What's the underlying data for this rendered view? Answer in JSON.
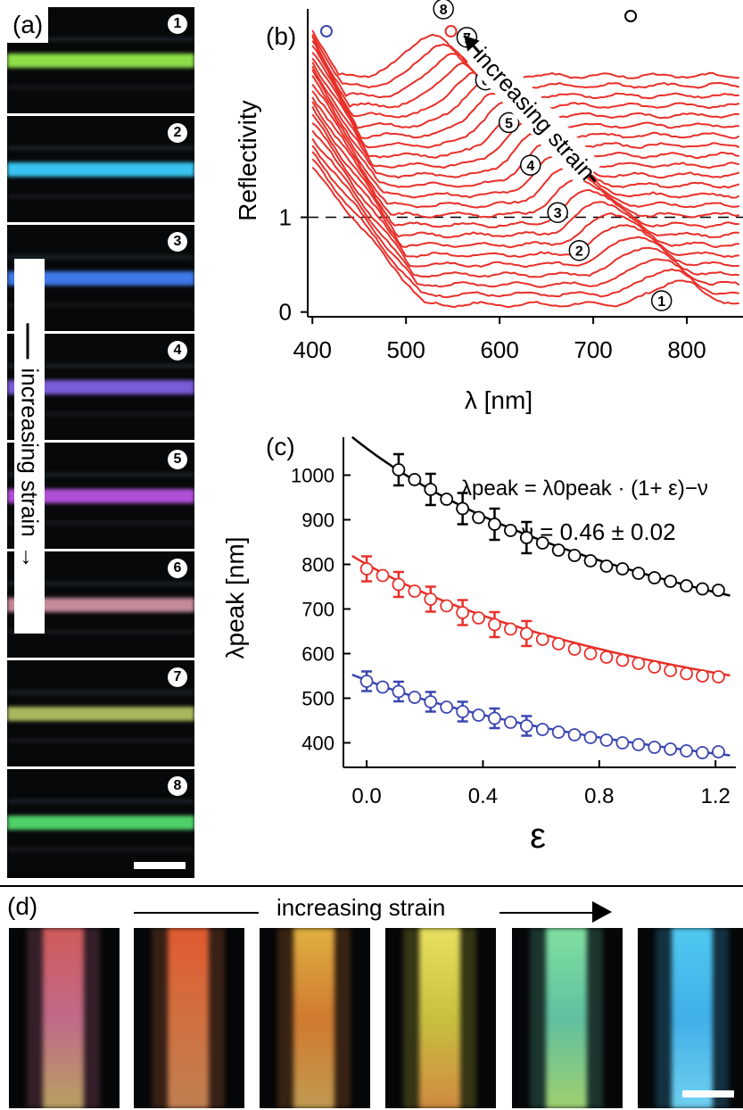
{
  "panel_a": {
    "label": "(a)",
    "strain_text": "increasing strain",
    "strips": [
      {
        "num": "1",
        "color": "#8ee04a"
      },
      {
        "num": "2",
        "color": "#38c4f2"
      },
      {
        "num": "3",
        "color": "#3f78e8"
      },
      {
        "num": "4",
        "color": "#7a5cd8"
      },
      {
        "num": "5",
        "color": "#b050d8"
      },
      {
        "num": "6",
        "color": "#c48a9a"
      },
      {
        "num": "7",
        "color": "#a9b85e"
      },
      {
        "num": "8",
        "color": "#4fd06a"
      }
    ]
  },
  "panel_d": {
    "label": "(d)",
    "strain_text": "increasing strain",
    "images": [
      {
        "colors": [
          "#d05a5a",
          "#c06a8a",
          "#b8a060"
        ]
      },
      {
        "colors": [
          "#e05a30",
          "#d07040",
          "#c08050"
        ]
      },
      {
        "colors": [
          "#e0b040",
          "#d07a30",
          "#c09a50"
        ]
      },
      {
        "colors": [
          "#e8e060",
          "#c8c040",
          "#d08a40"
        ]
      },
      {
        "colors": [
          "#80e0a0",
          "#60c0a0",
          "#a0d070"
        ]
      },
      {
        "colors": [
          "#50c8f0",
          "#40b0e8",
          "#70d0f0"
        ]
      }
    ]
  },
  "chart_data": [
    {
      "panel": "(b)",
      "type": "line",
      "xlabel": "λ [nm]",
      "ylabel": "Reflectivity",
      "xlim": [
        395,
        860
      ],
      "ylim": [
        -0.05,
        3.2
      ],
      "xticks": [
        "400",
        "500",
        "600",
        "700",
        "800"
      ],
      "yticks": [
        "0",
        "1"
      ],
      "reference_line_y": 1,
      "series_color": "#e8302a",
      "n_curves": 24,
      "annotation": "increasing strain",
      "curve_labels": [
        {
          "num": "1",
          "x": 773
        },
        {
          "num": "2",
          "x": 685
        },
        {
          "num": "3",
          "x": 662
        },
        {
          "num": "4",
          "x": 633
        },
        {
          "num": "5",
          "x": 610
        },
        {
          "num": "6",
          "x": 585
        },
        {
          "num": "7",
          "x": 565
        },
        {
          "num": "8",
          "x": 540
        }
      ],
      "peak_markers": [
        {
          "x": 415,
          "color": "#3b46b0"
        },
        {
          "x": 548,
          "color": "#e8302a"
        },
        {
          "x": 740,
          "color": "#000000"
        }
      ]
    },
    {
      "panel": "(c)",
      "type": "scatter",
      "xlabel": "ε",
      "ylabel": "λpeak [nm]",
      "xlim": [
        -0.08,
        1.27
      ],
      "ylim": [
        345,
        1085
      ],
      "xticks": [
        "0.0",
        "0.4",
        "0.8",
        "1.2"
      ],
      "yticks": [
        "400",
        "500",
        "600",
        "700",
        "800",
        "900",
        "1000"
      ],
      "formula": "λpeak = λ0peak · (1+ ε)−ν",
      "nu_text": "ν = 0.46 ± 0.02",
      "series": [
        {
          "color": "#000000",
          "fit_lambda0": 1060,
          "x": [
            0.11,
            0.165,
            0.22,
            0.275,
            0.33,
            0.385,
            0.44,
            0.495,
            0.55,
            0.605,
            0.66,
            0.715,
            0.77,
            0.825,
            0.88,
            0.935,
            0.99,
            1.045,
            1.1,
            1.155,
            1.21
          ],
          "y": [
            1012,
            990,
            968,
            946,
            925,
            905,
            890,
            876,
            860,
            848,
            832,
            820,
            808,
            796,
            790,
            780,
            770,
            762,
            752,
            745,
            742
          ],
          "err_x": [
            0.11,
            0.22,
            0.33,
            0.44,
            0.55
          ],
          "err": 35
        },
        {
          "color": "#e8302a",
          "fit_lambda0": 800,
          "x": [
            0.0,
            0.055,
            0.11,
            0.165,
            0.22,
            0.275,
            0.33,
            0.385,
            0.44,
            0.495,
            0.55,
            0.605,
            0.66,
            0.715,
            0.77,
            0.825,
            0.88,
            0.935,
            0.99,
            1.045,
            1.1,
            1.155,
            1.21
          ],
          "y": [
            790,
            775,
            755,
            740,
            722,
            707,
            692,
            680,
            665,
            655,
            645,
            632,
            622,
            610,
            600,
            592,
            585,
            578,
            570,
            562,
            555,
            550,
            548
          ],
          "err_x": [
            0.0,
            0.11,
            0.22,
            0.33,
            0.44,
            0.55
          ],
          "err": 28
        },
        {
          "color": "#3b46b0",
          "fit_lambda0": 540,
          "x": [
            0.0,
            0.055,
            0.11,
            0.165,
            0.22,
            0.275,
            0.33,
            0.385,
            0.44,
            0.495,
            0.55,
            0.605,
            0.66,
            0.715,
            0.77,
            0.825,
            0.88,
            0.935,
            0.99,
            1.045,
            1.1,
            1.155,
            1.21
          ],
          "y": [
            538,
            525,
            515,
            502,
            492,
            480,
            470,
            462,
            455,
            446,
            438,
            430,
            424,
            418,
            412,
            406,
            400,
            396,
            390,
            386,
            382,
            378,
            380
          ],
          "err_x": [
            0.0,
            0.11,
            0.22,
            0.33,
            0.44,
            0.55
          ],
          "err": 22
        }
      ]
    }
  ]
}
